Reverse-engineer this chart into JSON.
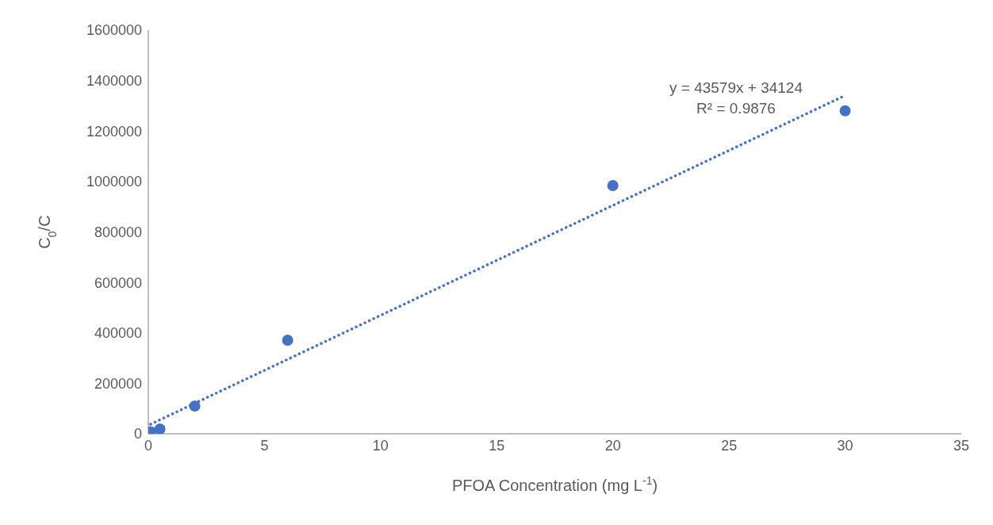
{
  "chart_data": {
    "type": "scatter",
    "xlabel": "PFOA Concentration (mg L$^{-1}$)",
    "ylabel": "C$_{0}$/C",
    "x": [
      0.1,
      0.5,
      2,
      6,
      20,
      30
    ],
    "series": [
      {
        "color": "#4472c4",
        "values": [
          8000,
          19000,
          110000,
          371000,
          984000,
          1280000
        ],
        "marker": "circle"
      },
      {
        "type": "line",
        "color": "#4472c4",
        "x": [
          0.1,
          30
        ],
        "values": [
          38000,
          1341000
        ],
        "marker": "none",
        "line_style": "dotted"
      }
    ],
    "xlim": [
      0,
      35
    ],
    "xticks": [
      0,
      5,
      10,
      15,
      20,
      25,
      30,
      35
    ],
    "ylim": [
      0,
      1600000
    ],
    "yticks": [
      0,
      200000,
      400000,
      600000,
      800000,
      1000000,
      1200000,
      1400000,
      1600000
    ],
    "grid": false,
    "legend": false,
    "annotations": [
      "y = 43579x + 34124",
      "R² = 0.9876"
    ]
  }
}
